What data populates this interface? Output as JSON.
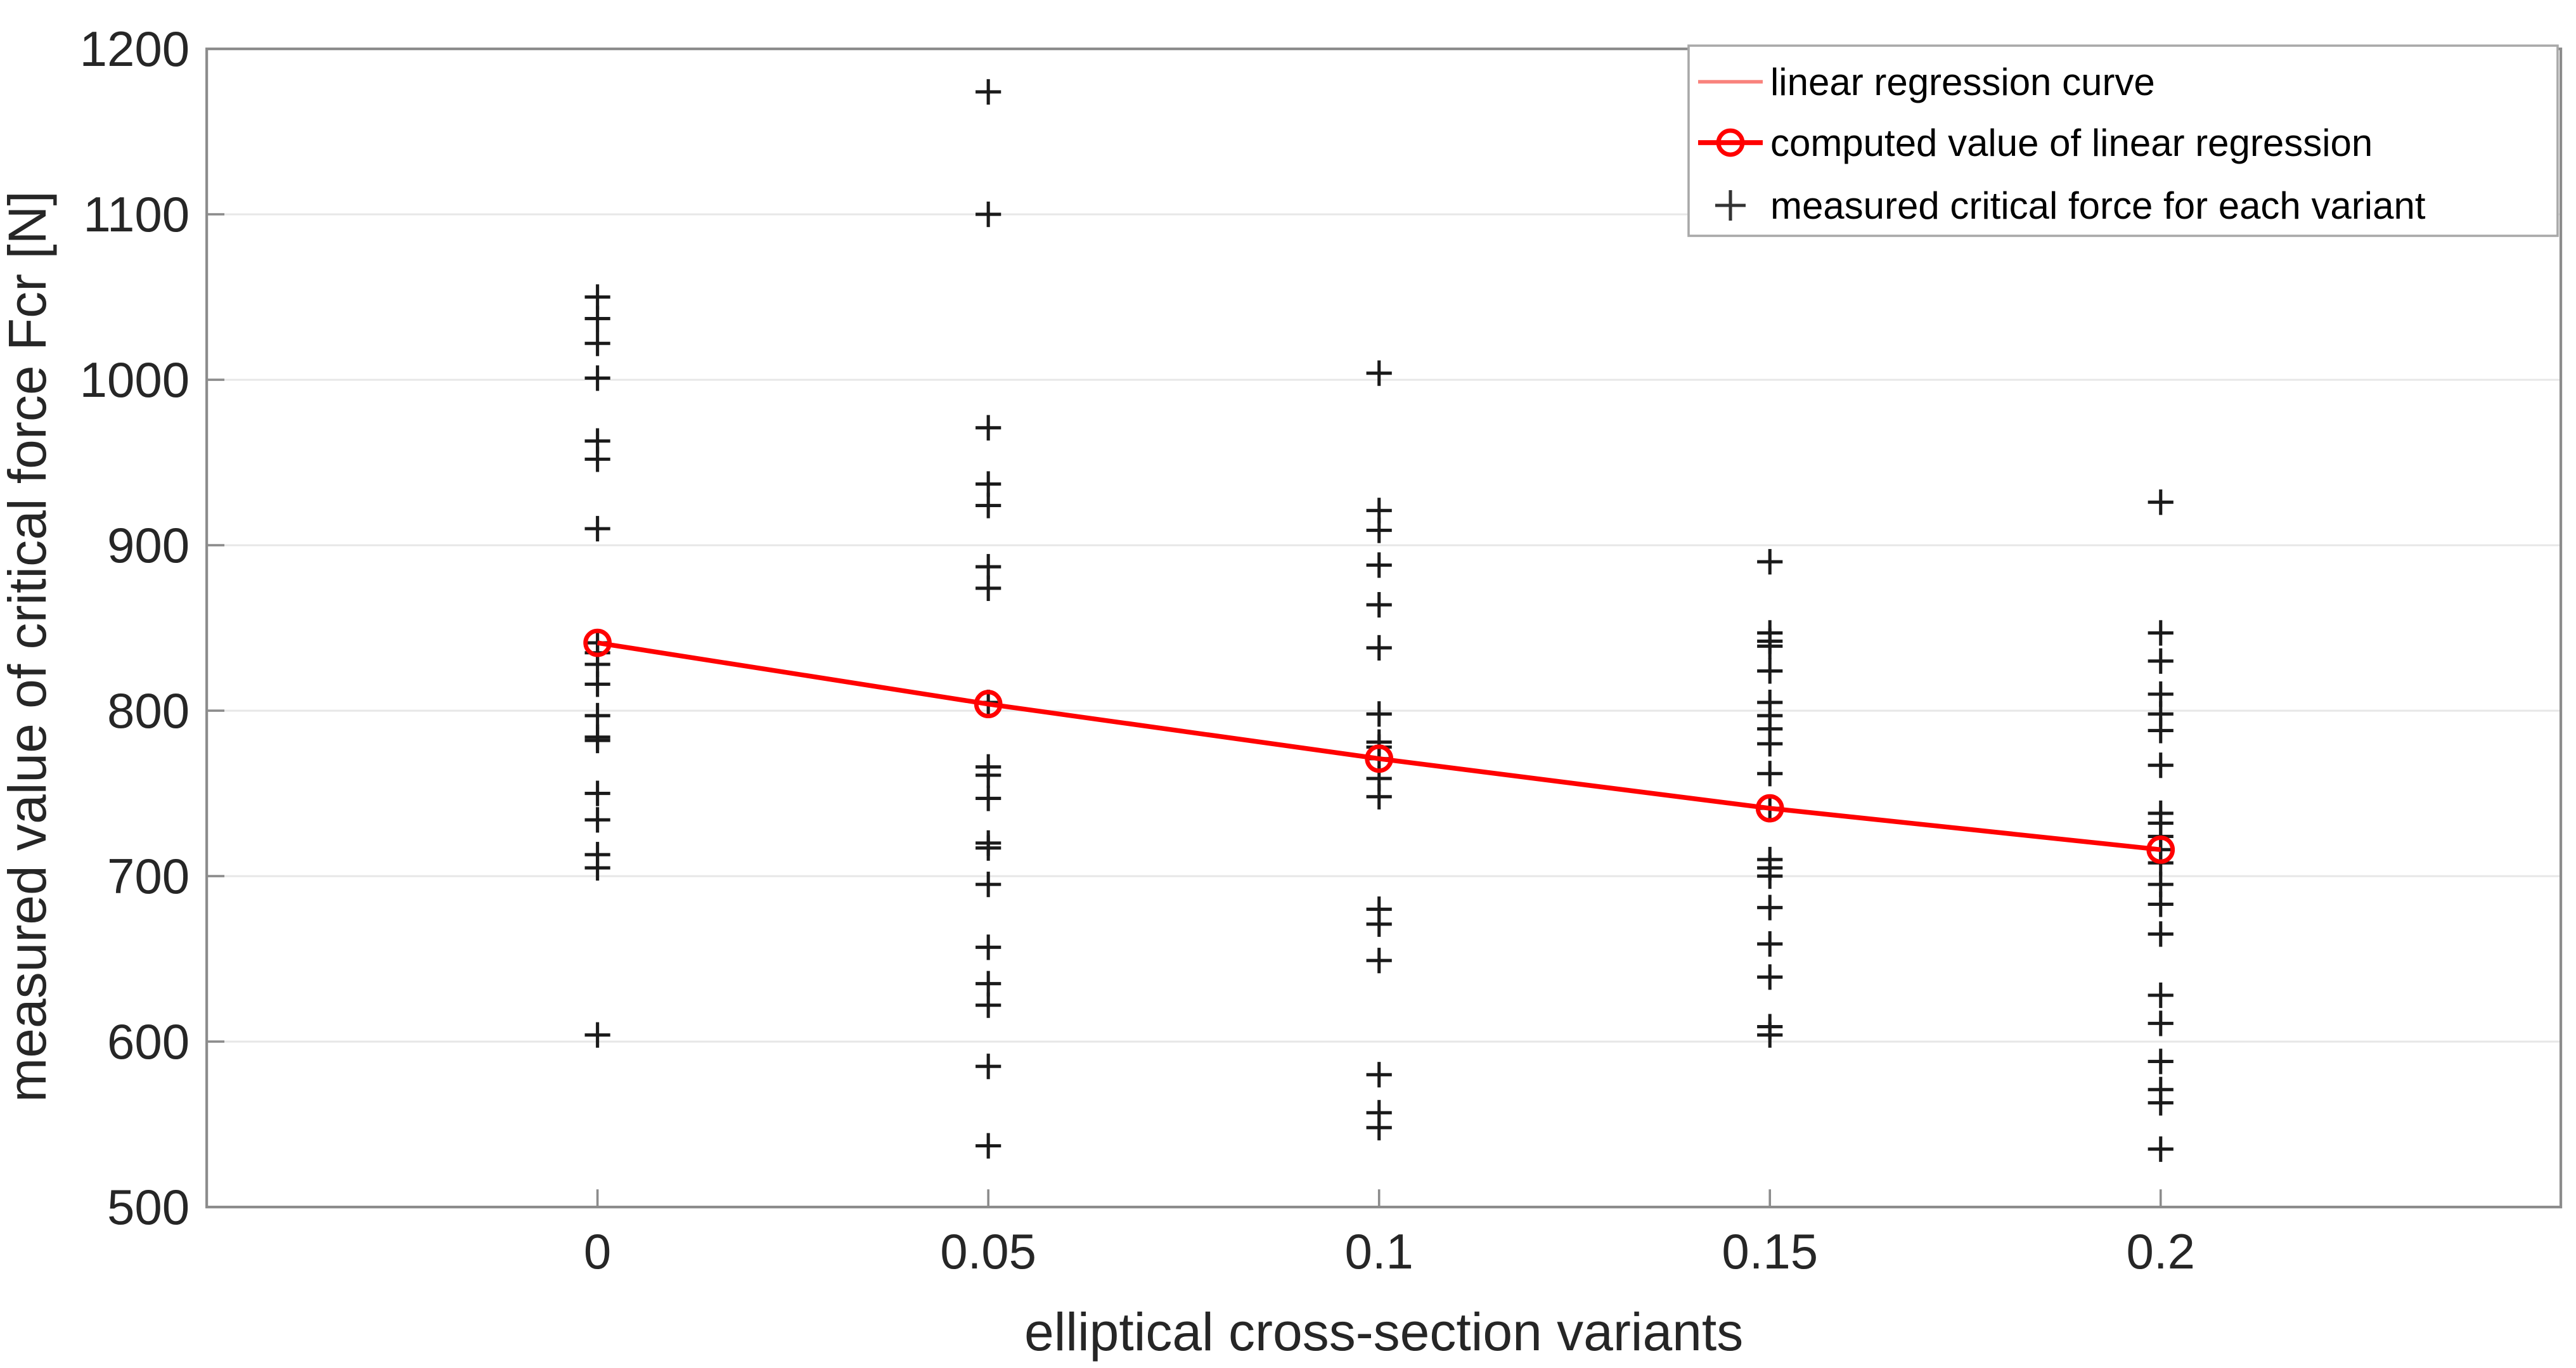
{
  "page": {
    "background": "#ffffff"
  },
  "chart_data": {
    "type": "scatter",
    "title": "",
    "xlabel": "elliptical cross-section variants",
    "ylabel": "measured value of critical force Fcr [N]",
    "xlim": [
      -0.05,
      0.2512
    ],
    "ylim": [
      500,
      1200
    ],
    "grid": true,
    "x_ticks": [
      0,
      0.05,
      0.1,
      0.15,
      0.2
    ],
    "x_tick_labels": [
      "0",
      "0.05",
      "0.1",
      "0.15",
      "0.2"
    ],
    "y_ticks": [
      500,
      600,
      700,
      800,
      900,
      1000,
      1100,
      1200
    ],
    "y_tick_labels": [
      "500",
      "600",
      "700",
      "800",
      "900",
      "1000",
      "1100",
      "1200"
    ],
    "colors": {
      "regression_line": "#ff0000",
      "regression_thin_line": "#f9827c",
      "measured_marker": "#1a1a1a"
    },
    "legend": {
      "position": "top-right",
      "entries": [
        {
          "label": "linear regression curve",
          "marker": "thin-line",
          "color": "#f9827c"
        },
        {
          "label": "computed value of linear regression",
          "marker": "line-circle",
          "color": "#ff0000"
        },
        {
          "label": "measured critical force for each variant",
          "marker": "plus",
          "color": "#333333"
        }
      ]
    },
    "series": [
      {
        "name": "linear regression curve",
        "type": "line",
        "x": [
          0,
          0.05,
          0.1,
          0.15,
          0.2
        ],
        "y": [
          841,
          804,
          771,
          741,
          716
        ]
      },
      {
        "name": "computed value of linear regression",
        "type": "line-circle",
        "x": [
          0,
          0.05,
          0.1,
          0.15,
          0.2
        ],
        "y": [
          841,
          804,
          771,
          741,
          716
        ]
      },
      {
        "name": "measured critical force for each variant",
        "type": "scatter-plus",
        "groups": [
          {
            "x": 0,
            "values": [
              1050,
              1037,
              1022,
              1001,
              963,
              952,
              910,
              841,
              835,
              828,
              816,
              797,
              784,
              782,
              750,
              734,
              713,
              705,
              604
            ]
          },
          {
            "x": 0.05,
            "values": [
              1174,
              1100,
              971,
              937,
              924,
              887,
              874,
              805,
              766,
              761,
              747,
              720,
              717,
              695,
              657,
              635,
              622,
              585,
              537
            ]
          },
          {
            "x": 0.1,
            "values": [
              1004,
              921,
              909,
              888,
              864,
              838,
              798,
              781,
              778,
              771,
              759,
              748,
              680,
              671,
              649,
              580,
              557,
              548
            ]
          },
          {
            "x": 0.15,
            "values": [
              890,
              847,
              842,
              839,
              824,
              805,
              797,
              789,
              780,
              762,
              741,
              710,
              705,
              700,
              681,
              659,
              639,
              609,
              604
            ]
          },
          {
            "x": 0.2,
            "values": [
              926,
              847,
              830,
              810,
              798,
              788,
              767,
              738,
              732,
              724,
              716,
              708,
              695,
              683,
              665,
              628,
              611,
              588,
              571,
              563,
              535
            ]
          }
        ]
      }
    ]
  }
}
